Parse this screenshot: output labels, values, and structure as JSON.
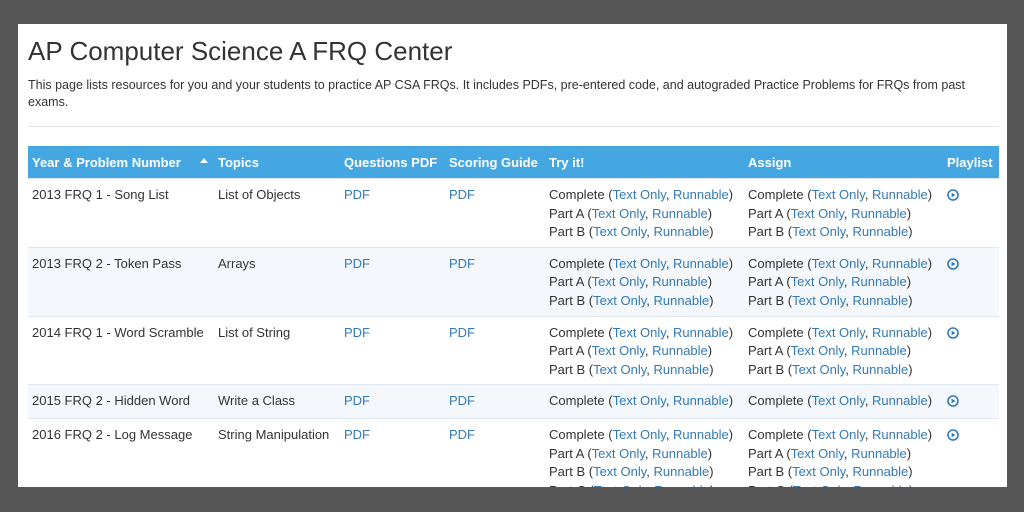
{
  "header": {
    "title": "AP Computer Science A FRQ Center",
    "description": "This page lists resources for you and your students to practice AP CSA FRQs. It includes PDFs, pre-entered code, and autograded Practice Problems for FRQs from past exams."
  },
  "punctuation": {
    "open": " (",
    "sep": ", ",
    "close": ")"
  },
  "table": {
    "columns": [
      "Year & Problem Number",
      "Topics",
      "Questions PDF",
      "Scoring Guide",
      "Try it!",
      "Assign",
      "Playlist"
    ],
    "rows": [
      {
        "problem": "2013 FRQ 1 - Song List",
        "topic": "List of Objects",
        "questions": "PDF",
        "scoring": "PDF",
        "try": [
          {
            "part": "Complete",
            "links": [
              "Text Only",
              "Runnable"
            ]
          },
          {
            "part": "Part A",
            "links": [
              "Text Only",
              "Runnable"
            ]
          },
          {
            "part": "Part B",
            "links": [
              "Text Only",
              "Runnable"
            ]
          }
        ],
        "assign": [
          {
            "part": "Complete",
            "links": [
              "Text Only",
              "Runnable"
            ]
          },
          {
            "part": "Part A",
            "links": [
              "Text Only",
              "Runnable"
            ]
          },
          {
            "part": "Part B",
            "links": [
              "Text Only",
              "Runnable"
            ]
          }
        ]
      },
      {
        "problem": "2013 FRQ 2 - Token Pass",
        "topic": "Arrays",
        "questions": "PDF",
        "scoring": "PDF",
        "try": [
          {
            "part": "Complete",
            "links": [
              "Text Only",
              "Runnable"
            ]
          },
          {
            "part": "Part A",
            "links": [
              "Text Only",
              "Runnable"
            ]
          },
          {
            "part": "Part B",
            "links": [
              "Text Only",
              "Runnable"
            ]
          }
        ],
        "assign": [
          {
            "part": "Complete",
            "links": [
              "Text Only",
              "Runnable"
            ]
          },
          {
            "part": "Part A",
            "links": [
              "Text Only",
              "Runnable"
            ]
          },
          {
            "part": "Part B",
            "links": [
              "Text Only",
              "Runnable"
            ]
          }
        ]
      },
      {
        "problem": "2014 FRQ 1 - Word Scramble",
        "topic": "List of String",
        "questions": "PDF",
        "scoring": "PDF",
        "try": [
          {
            "part": "Complete",
            "links": [
              "Text Only",
              "Runnable"
            ]
          },
          {
            "part": "Part A",
            "links": [
              "Text Only",
              "Runnable"
            ]
          },
          {
            "part": "Part B",
            "links": [
              "Text Only",
              "Runnable"
            ]
          }
        ],
        "assign": [
          {
            "part": "Complete",
            "links": [
              "Text Only",
              "Runnable"
            ]
          },
          {
            "part": "Part A",
            "links": [
              "Text Only",
              "Runnable"
            ]
          },
          {
            "part": "Part B",
            "links": [
              "Text Only",
              "Runnable"
            ]
          }
        ]
      },
      {
        "problem": "2015 FRQ 2 - Hidden Word",
        "topic": "Write a Class",
        "questions": "PDF",
        "scoring": "PDF",
        "try": [
          {
            "part": "Complete",
            "links": [
              "Text Only",
              "Runnable"
            ]
          }
        ],
        "assign": [
          {
            "part": "Complete",
            "links": [
              "Text Only",
              "Runnable"
            ]
          }
        ]
      },
      {
        "problem": "2016 FRQ 2 - Log Message",
        "topic": "String Manipulation",
        "questions": "PDF",
        "scoring": "PDF",
        "try": [
          {
            "part": "Complete",
            "links": [
              "Text Only",
              "Runnable"
            ]
          },
          {
            "part": "Part A",
            "links": [
              "Text Only",
              "Runnable"
            ]
          },
          {
            "part": "Part B",
            "links": [
              "Text Only",
              "Runnable"
            ]
          },
          {
            "part": "Part C",
            "links": [
              "Text Only",
              "Runnable"
            ]
          }
        ],
        "assign": [
          {
            "part": "Complete",
            "links": [
              "Text Only",
              "Runnable"
            ]
          },
          {
            "part": "Part A",
            "links": [
              "Text Only",
              "Runnable"
            ]
          },
          {
            "part": "Part B",
            "links": [
              "Text Only",
              "Runnable"
            ]
          },
          {
            "part": "Part C",
            "links": [
              "Text Only",
              "Runnable"
            ]
          }
        ]
      }
    ]
  }
}
